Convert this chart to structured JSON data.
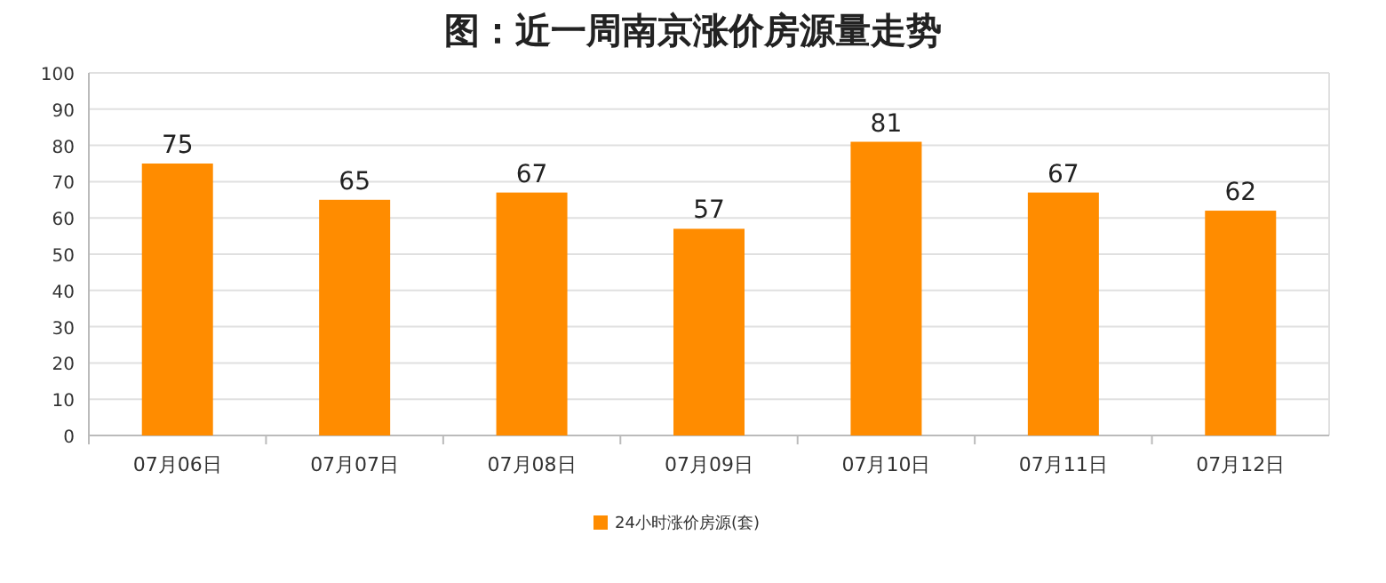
{
  "chart_data": {
    "type": "bar",
    "title": "图：近一周南京涨价房源量走势",
    "categories": [
      "07月06日",
      "07月07日",
      "07月08日",
      "07月09日",
      "07月10日",
      "07月11日",
      "07月12日"
    ],
    "series": [
      {
        "name": "24小时涨价房源(套)",
        "color": "#ff8c00",
        "values": [
          75,
          65,
          67,
          57,
          81,
          67,
          62
        ]
      }
    ],
    "ylim": [
      0,
      100
    ],
    "yticks": [
      0,
      10,
      20,
      30,
      40,
      50,
      60,
      70,
      80,
      90,
      100
    ],
    "grid": "y",
    "data_labels": true,
    "legend": "bottom"
  }
}
